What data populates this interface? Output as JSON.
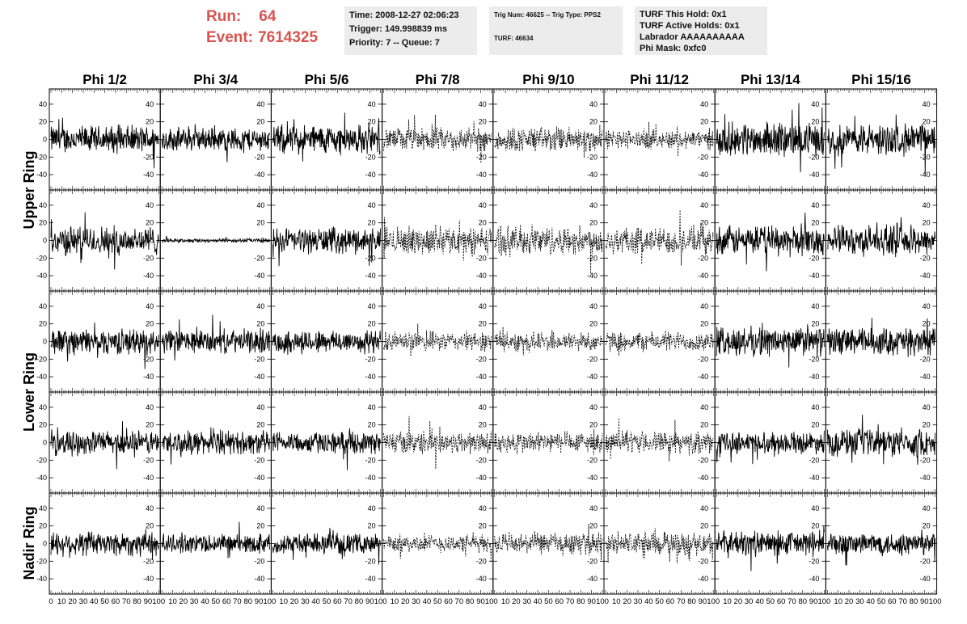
{
  "header": {
    "run_label": "Run:",
    "run_value": "64",
    "event_label": "Event:",
    "event_value": "7614325"
  },
  "info_boxes": {
    "time": "Time: 2008-12-27 02:06:23",
    "trigger": "Trigger: 149.998839 ms",
    "priority": "Priority: 7 -- Queue: 7",
    "trig_num": "Trig Num: 46625 -- Trig Type: PPS2",
    "turf": "TURF: 46634",
    "turf_hold": "TURF This Hold: 0x1",
    "turf_active": "TURF Active Holds: 0x1",
    "labrador": "Labrador AAAAAAAAAA",
    "phi_mask": "Phi Mask: 0xfc0"
  },
  "chart_data": {
    "type": "line",
    "columns": [
      "Phi 1/2",
      "Phi 3/4",
      "Phi 5/6",
      "Phi 7/8",
      "Phi 9/10",
      "Phi 11/12",
      "Phi 13/14",
      "Phi 15/16"
    ],
    "rows": [
      "Upper Ring",
      "Upper Ring",
      "Lower Ring",
      "Lower Ring",
      "Nadir Ring"
    ],
    "row_labels": [
      "Upper Ring",
      "Lower Ring",
      "Nadir Ring"
    ],
    "xlim": [
      0,
      100
    ],
    "ylim": [
      -50,
      50
    ],
    "y_ticks": [
      -40,
      -20,
      0,
      20,
      40
    ],
    "x_tick_labels": [
      "0",
      "10",
      "20",
      "30",
      "40",
      "50",
      "60",
      "70",
      "80",
      "90",
      "100"
    ],
    "dashed_columns": [
      3,
      4,
      5
    ],
    "amplitudes": [
      [
        14,
        12,
        15,
        12,
        13,
        10,
        17,
        16
      ],
      [
        15,
        2,
        13,
        14,
        15,
        14,
        15,
        15
      ],
      [
        13,
        12,
        12,
        10,
        10,
        10,
        15,
        14
      ],
      [
        12,
        12,
        11,
        12,
        11,
        11,
        11,
        14
      ],
      [
        13,
        10,
        10,
        9,
        11,
        12,
        13,
        12
      ]
    ],
    "points_per_trace": 260
  }
}
